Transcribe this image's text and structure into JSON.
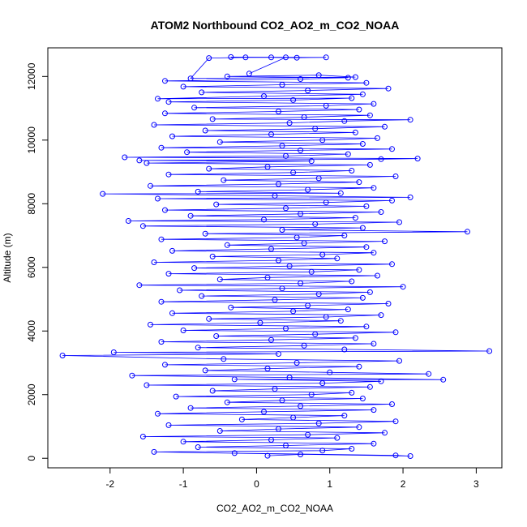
{
  "chart_data": {
    "type": "scatter",
    "title": "ATOM2 Northbound CO2_AO2_m_CO2_NOAA",
    "xlabel": "CO2_AO2_m_CO2_NOAA",
    "ylabel": "Altitude (m)",
    "xlim": [
      -2.85,
      3.35
    ],
    "ylim": [
      -300,
      12900
    ],
    "x_ticks": [
      -2,
      -1,
      0,
      1,
      2,
      3
    ],
    "y_ticks": [
      0,
      2000,
      4000,
      6000,
      8000,
      10000,
      12000
    ],
    "x_tick_labels": [
      "-2",
      "-1",
      "0",
      "1",
      "2",
      "3"
    ],
    "y_tick_labels": [
      "0",
      "2000",
      "4000",
      "6000",
      "8000",
      "10000",
      "12000"
    ],
    "grid": false,
    "legend": "none",
    "marker": "open-circle",
    "connected": true,
    "series": [
      {
        "color": "#0000ff",
        "points": [
          [
            0.15,
            80
          ],
          [
            0.6,
            120
          ],
          [
            -0.3,
            160
          ],
          [
            1.9,
            90
          ],
          [
            2.1,
            70
          ],
          [
            -1.4,
            200
          ],
          [
            0.9,
            240
          ],
          [
            1.3,
            300
          ],
          [
            -0.8,
            350
          ],
          [
            0.4,
            400
          ],
          [
            1.6,
            460
          ],
          [
            -1.0,
            520
          ],
          [
            0.2,
            580
          ],
          [
            1.1,
            640
          ],
          [
            -1.55,
            680
          ],
          [
            0.7,
            740
          ],
          [
            1.75,
            800
          ],
          [
            -0.5,
            860
          ],
          [
            0.3,
            920
          ],
          [
            1.4,
            980
          ],
          [
            -1.2,
            1040
          ],
          [
            0.85,
            1100
          ],
          [
            1.9,
            1160
          ],
          [
            -0.2,
            1220
          ],
          [
            0.5,
            1280
          ],
          [
            1.2,
            1340
          ],
          [
            -1.35,
            1400
          ],
          [
            0.1,
            1460
          ],
          [
            1.6,
            1520
          ],
          [
            -0.9,
            1580
          ],
          [
            0.6,
            1640
          ],
          [
            1.85,
            1700
          ],
          [
            -0.4,
            1760
          ],
          [
            0.35,
            1820
          ],
          [
            1.45,
            1880
          ],
          [
            -1.1,
            1940
          ],
          [
            0.75,
            2000
          ],
          [
            1.3,
            2060
          ],
          [
            -0.6,
            2120
          ],
          [
            0.25,
            2180
          ],
          [
            1.55,
            2240
          ],
          [
            -1.5,
            2300
          ],
          [
            0.9,
            2360
          ],
          [
            1.7,
            2420
          ],
          [
            -0.3,
            2480
          ],
          [
            2.55,
            2470
          ],
          [
            0.45,
            2540
          ],
          [
            -1.7,
            2600
          ],
          [
            2.35,
            2650
          ],
          [
            1.0,
            2700
          ],
          [
            -0.7,
            2760
          ],
          [
            0.15,
            2820
          ],
          [
            1.4,
            2880
          ],
          [
            -1.25,
            2940
          ],
          [
            0.55,
            3000
          ],
          [
            1.95,
            3060
          ],
          [
            -0.45,
            3120
          ],
          [
            -2.65,
            3230
          ],
          [
            0.3,
            3280
          ],
          [
            -1.95,
            3330
          ],
          [
            3.18,
            3370
          ],
          [
            1.2,
            3420
          ],
          [
            -0.8,
            3480
          ],
          [
            0.65,
            3540
          ],
          [
            1.6,
            3600
          ],
          [
            -1.3,
            3660
          ],
          [
            0.2,
            3720
          ],
          [
            1.35,
            3780
          ],
          [
            -0.55,
            3840
          ],
          [
            0.8,
            3900
          ],
          [
            1.9,
            3960
          ],
          [
            -1.0,
            4020
          ],
          [
            0.4,
            4080
          ],
          [
            1.5,
            4140
          ],
          [
            -1.45,
            4200
          ],
          [
            0.05,
            4260
          ],
          [
            1.15,
            4320
          ],
          [
            -0.65,
            4380
          ],
          [
            0.95,
            4440
          ],
          [
            1.7,
            4500
          ],
          [
            -1.15,
            4560
          ],
          [
            0.5,
            4620
          ],
          [
            1.25,
            4680
          ],
          [
            -0.35,
            4740
          ],
          [
            0.7,
            4800
          ],
          [
            1.8,
            4860
          ],
          [
            -1.3,
            4920
          ],
          [
            0.25,
            4980
          ],
          [
            1.45,
            5040
          ],
          [
            -0.75,
            5100
          ],
          [
            0.85,
            5160
          ],
          [
            1.55,
            5220
          ],
          [
            -1.05,
            5280
          ],
          [
            0.35,
            5340
          ],
          [
            2.0,
            5390
          ],
          [
            -1.6,
            5440
          ],
          [
            0.6,
            5500
          ],
          [
            1.3,
            5560
          ],
          [
            -0.5,
            5620
          ],
          [
            0.15,
            5680
          ],
          [
            1.65,
            5740
          ],
          [
            -1.2,
            5800
          ],
          [
            0.75,
            5860
          ],
          [
            1.4,
            5920
          ],
          [
            -0.85,
            5980
          ],
          [
            0.45,
            6040
          ],
          [
            1.85,
            6100
          ],
          [
            -1.4,
            6160
          ],
          [
            0.3,
            6220
          ],
          [
            1.1,
            6280
          ],
          [
            -0.6,
            6340
          ],
          [
            0.9,
            6400
          ],
          [
            1.6,
            6460
          ],
          [
            -1.15,
            6520
          ],
          [
            0.2,
            6580
          ],
          [
            1.5,
            6640
          ],
          [
            -0.4,
            6700
          ],
          [
            0.65,
            6760
          ],
          [
            1.75,
            6820
          ],
          [
            -1.3,
            6880
          ],
          [
            0.55,
            6940
          ],
          [
            1.2,
            7000
          ],
          [
            -0.7,
            7060
          ],
          [
            2.88,
            7120
          ],
          [
            0.35,
            7180
          ],
          [
            1.45,
            7240
          ],
          [
            -1.55,
            7300
          ],
          [
            0.8,
            7360
          ],
          [
            1.95,
            7420
          ],
          [
            -1.75,
            7460
          ],
          [
            0.1,
            7500
          ],
          [
            1.35,
            7560
          ],
          [
            -0.9,
            7620
          ],
          [
            0.6,
            7680
          ],
          [
            1.7,
            7740
          ],
          [
            -1.25,
            7800
          ],
          [
            0.4,
            7860
          ],
          [
            1.5,
            7920
          ],
          [
            -0.55,
            7980
          ],
          [
            0.95,
            8040
          ],
          [
            1.85,
            8100
          ],
          [
            -1.35,
            8160
          ],
          [
            2.1,
            8200
          ],
          [
            0.25,
            8250
          ],
          [
            -2.1,
            8310
          ],
          [
            1.15,
            8330
          ],
          [
            -0.8,
            8380
          ],
          [
            0.7,
            8440
          ],
          [
            1.6,
            8500
          ],
          [
            -1.45,
            8560
          ],
          [
            0.3,
            8620
          ],
          [
            1.4,
            8680
          ],
          [
            -0.45,
            8740
          ],
          [
            0.85,
            8800
          ],
          [
            1.9,
            8860
          ],
          [
            -1.2,
            8920
          ],
          [
            0.5,
            8980
          ],
          [
            1.3,
            9040
          ],
          [
            -0.65,
            9100
          ],
          [
            0.15,
            9160
          ],
          [
            1.55,
            9220
          ],
          [
            -1.5,
            9280
          ],
          [
            0.75,
            9340
          ],
          [
            -1.6,
            9360
          ],
          [
            1.7,
            9400
          ],
          [
            2.2,
            9420
          ],
          [
            -1.8,
            9460
          ],
          [
            0.4,
            9500
          ],
          [
            1.25,
            9560
          ],
          [
            -0.95,
            9620
          ],
          [
            0.6,
            9680
          ],
          [
            1.85,
            9720
          ],
          [
            -1.3,
            9760
          ],
          [
            0.35,
            9820
          ],
          [
            1.45,
            9880
          ],
          [
            -0.5,
            9940
          ],
          [
            0.9,
            10000
          ],
          [
            1.65,
            10060
          ],
          [
            -1.15,
            10120
          ],
          [
            0.2,
            10180
          ],
          [
            1.35,
            10240
          ],
          [
            -0.7,
            10300
          ],
          [
            0.8,
            10360
          ],
          [
            1.75,
            10420
          ],
          [
            -1.4,
            10480
          ],
          [
            0.45,
            10540
          ],
          [
            1.2,
            10600
          ],
          [
            2.1,
            10640
          ],
          [
            -0.6,
            10660
          ],
          [
            0.65,
            10720
          ],
          [
            1.55,
            10780
          ],
          [
            -1.25,
            10840
          ],
          [
            0.3,
            10900
          ],
          [
            1.4,
            10960
          ],
          [
            -0.85,
            11020
          ],
          [
            0.95,
            11080
          ],
          [
            1.6,
            11140
          ],
          [
            -1.2,
            11200
          ],
          [
            0.5,
            11260
          ],
          [
            1.3,
            11320
          ],
          [
            -1.35,
            11300
          ],
          [
            0.1,
            11380
          ],
          [
            1.45,
            11440
          ],
          [
            -0.75,
            11500
          ],
          [
            0.7,
            11560
          ],
          [
            1.8,
            11620
          ],
          [
            -1.0,
            11680
          ],
          [
            0.35,
            11740
          ],
          [
            1.5,
            11800
          ],
          [
            -1.25,
            11860
          ],
          [
            0.6,
            11920
          ],
          [
            1.25,
            11960
          ],
          [
            -0.4,
            12000
          ],
          [
            0.85,
            12040
          ],
          [
            1.35,
            11980
          ],
          [
            -0.9,
            11940
          ],
          [
            -0.65,
            12580
          ],
          [
            -0.15,
            12600
          ],
          [
            0.2,
            12600
          ],
          [
            0.55,
            12590
          ],
          [
            0.95,
            12600
          ],
          [
            -0.35,
            12610
          ],
          [
            0.4,
            12600
          ],
          [
            -0.1,
            12090
          ]
        ]
      }
    ]
  }
}
